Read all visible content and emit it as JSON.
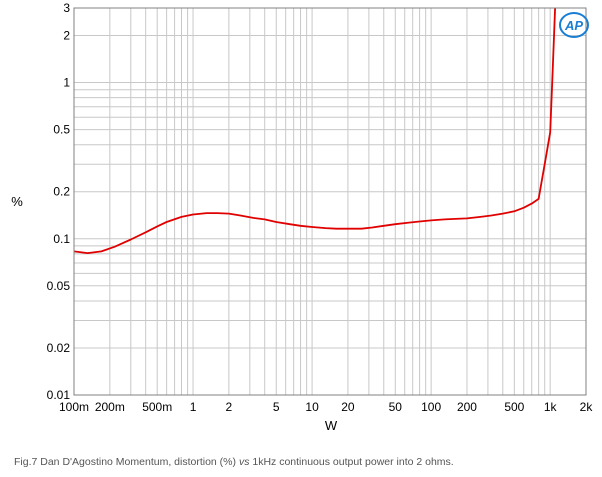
{
  "chart_data": {
    "type": "line",
    "x_scale": "log",
    "y_scale": "log",
    "xlim": [
      0.1,
      2000
    ],
    "ylim": [
      0.01,
      3
    ],
    "xlabel": "W",
    "ylabel": "%",
    "grid": true,
    "x_ticks": [
      {
        "v": 0.1,
        "label": "100m"
      },
      {
        "v": 0.2,
        "label": "200m"
      },
      {
        "v": 0.5,
        "label": "500m"
      },
      {
        "v": 1,
        "label": "1"
      },
      {
        "v": 2,
        "label": "2"
      },
      {
        "v": 5,
        "label": "5"
      },
      {
        "v": 10,
        "label": "10"
      },
      {
        "v": 20,
        "label": "20"
      },
      {
        "v": 50,
        "label": "50"
      },
      {
        "v": 100,
        "label": "100"
      },
      {
        "v": 200,
        "label": "200"
      },
      {
        "v": 500,
        "label": "500"
      },
      {
        "v": 1000,
        "label": "1k"
      },
      {
        "v": 2000,
        "label": "2k"
      }
    ],
    "y_ticks": [
      {
        "v": 0.01,
        "label": "0.01"
      },
      {
        "v": 0.02,
        "label": "0.02"
      },
      {
        "v": 0.05,
        "label": "0.05"
      },
      {
        "v": 0.1,
        "label": "0.1"
      },
      {
        "v": 0.2,
        "label": "0.2"
      },
      {
        "v": 0.5,
        "label": "0.5"
      },
      {
        "v": 1,
        "label": "1"
      },
      {
        "v": 2,
        "label": "2"
      },
      {
        "v": 3,
        "label": "3"
      }
    ],
    "series": [
      {
        "color": "#e00000",
        "x": [
          0.1,
          0.13,
          0.17,
          0.22,
          0.3,
          0.4,
          0.5,
          0.6,
          0.8,
          1.0,
          1.3,
          1.6,
          2.0,
          2.5,
          3.2,
          4,
          5,
          6.5,
          8,
          10,
          13,
          16,
          20,
          26,
          32,
          40,
          50,
          65,
          80,
          100,
          130,
          160,
          200,
          260,
          320,
          400,
          500,
          600,
          700,
          800,
          900,
          1000,
          1050,
          1100
        ],
        "y": [
          0.083,
          0.081,
          0.083,
          0.089,
          0.099,
          0.11,
          0.12,
          0.128,
          0.138,
          0.143,
          0.146,
          0.146,
          0.145,
          0.141,
          0.136,
          0.133,
          0.128,
          0.124,
          0.121,
          0.119,
          0.117,
          0.116,
          0.116,
          0.116,
          0.118,
          0.121,
          0.124,
          0.127,
          0.129,
          0.131,
          0.133,
          0.134,
          0.135,
          0.138,
          0.141,
          0.145,
          0.15,
          0.158,
          0.168,
          0.18,
          0.3,
          0.48,
          1.2,
          3.0
        ]
      }
    ]
  },
  "caption": {
    "prefix": "Fig.7 Dan D'Agostino Momentum, distortion (%) ",
    "vs": "vs",
    "suffix": " 1kHz continuous output power into 2 ohms."
  },
  "logo": {
    "text": "AP",
    "color": "#1a7fd4"
  }
}
